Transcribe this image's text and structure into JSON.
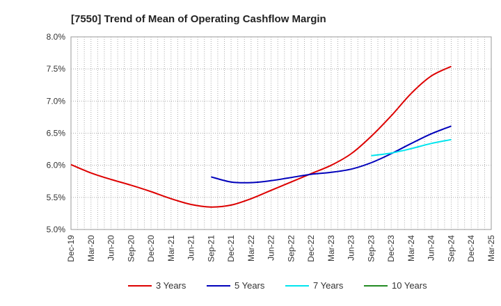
{
  "chart_data": {
    "type": "line",
    "title": "[7550]  Trend of Mean of Operating Cashflow Margin",
    "xlabel": "",
    "ylabel": "",
    "categories": [
      "Dec-19",
      "Mar-20",
      "Jun-20",
      "Sep-20",
      "Dec-20",
      "Mar-21",
      "Jun-21",
      "Sep-21",
      "Dec-21",
      "Mar-22",
      "Jun-22",
      "Sep-22",
      "Dec-22",
      "Mar-23",
      "Jun-23",
      "Sep-23",
      "Dec-23",
      "Mar-24",
      "Jun-24",
      "Sep-24",
      "Dec-24",
      "Mar-25"
    ],
    "ylim": [
      5.0,
      8.0
    ],
    "yticks": [
      "5.0%",
      "5.5%",
      "6.0%",
      "6.5%",
      "7.0%",
      "7.5%",
      "8.0%"
    ],
    "yticks_values": [
      5.0,
      5.5,
      6.0,
      6.5,
      7.0,
      7.5,
      8.0
    ],
    "grid": true,
    "legend_position": "bottom",
    "series": [
      {
        "name": "3 Years",
        "color": "#dd0000",
        "values": [
          6.01,
          5.88,
          5.78,
          5.69,
          5.59,
          5.48,
          5.39,
          5.35,
          5.38,
          5.48,
          5.61,
          5.74,
          5.87,
          6.0,
          6.18,
          6.45,
          6.77,
          7.12,
          7.39,
          7.54,
          null,
          null
        ]
      },
      {
        "name": "5 Years",
        "color": "#0000bb",
        "values": [
          null,
          null,
          null,
          null,
          null,
          null,
          null,
          5.82,
          5.74,
          5.73,
          5.76,
          5.81,
          5.86,
          5.89,
          5.94,
          6.04,
          6.18,
          6.34,
          6.49,
          6.61,
          null,
          null
        ]
      },
      {
        "name": "7 Years",
        "color": "#00e5ee",
        "values": [
          null,
          null,
          null,
          null,
          null,
          null,
          null,
          null,
          null,
          null,
          null,
          null,
          null,
          null,
          null,
          6.15,
          6.19,
          6.26,
          6.34,
          6.4,
          null,
          null
        ]
      },
      {
        "name": "10 Years",
        "color": "#228b22",
        "values": [
          null,
          null,
          null,
          null,
          null,
          null,
          null,
          null,
          null,
          null,
          null,
          null,
          null,
          null,
          null,
          null,
          null,
          null,
          null,
          null,
          null,
          null
        ]
      }
    ]
  }
}
